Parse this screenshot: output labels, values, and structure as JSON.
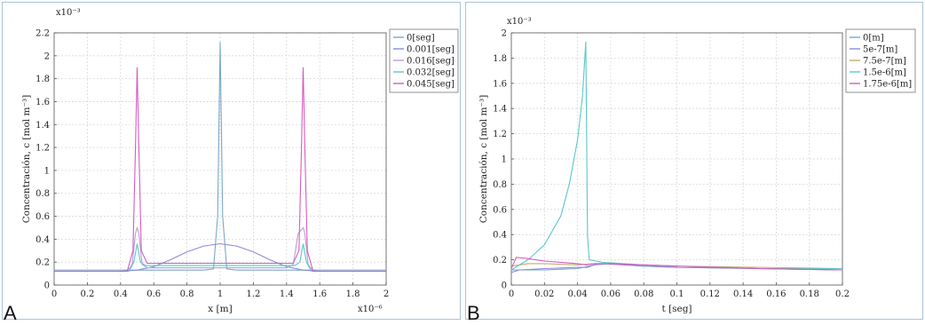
{
  "chart_data": [
    {
      "panel": "A",
      "type": "line",
      "xlabel": "x [m]",
      "ylabel": "Concentración, c [mol m⁻³]",
      "x_multiplier": "x10⁻⁶",
      "y_multiplier": "x10⁻³",
      "xlim": [
        0,
        2
      ],
      "ylim": [
        0,
        2.2
      ],
      "xticks": [
        0,
        0.2,
        0.4,
        0.6,
        0.8,
        1,
        1.2,
        1.4,
        1.6,
        1.8,
        2
      ],
      "xtick_labels": [
        "0",
        "0.2",
        "0.4",
        "0.6",
        "0.8",
        "1",
        "1.2",
        "1.4",
        "1.6",
        "1.8",
        "2"
      ],
      "yticks": [
        0,
        0.2,
        0.4,
        0.6,
        0.8,
        1,
        1.2,
        1.4,
        1.6,
        1.8,
        2,
        2.2
      ],
      "ytick_labels": [
        "0",
        "0.2",
        "0.4",
        "0.6",
        "0.8",
        "1",
        "1.2",
        "1.4",
        "1.6",
        "1.8",
        "2",
        "2.2"
      ],
      "grid": true,
      "legend_position": "top-right",
      "series": [
        {
          "name": "0[seg]",
          "color": "#7aa8c8",
          "points": [
            [
              0,
              0.13
            ],
            [
              0.4,
              0.13
            ],
            [
              0.9,
              0.13
            ],
            [
              0.96,
              0.14
            ],
            [
              0.985,
              0.6
            ],
            [
              1.0,
              2.12
            ],
            [
              1.015,
              0.6
            ],
            [
              1.04,
              0.14
            ],
            [
              1.1,
              0.13
            ],
            [
              1.6,
              0.13
            ],
            [
              2,
              0.13
            ]
          ]
        },
        {
          "name": "0.001[seg]",
          "color": "#8c8cd8",
          "points": [
            [
              0,
              0.12
            ],
            [
              0.4,
              0.12
            ],
            [
              0.5,
              0.13
            ],
            [
              0.6,
              0.16
            ],
            [
              0.7,
              0.22
            ],
            [
              0.8,
              0.29
            ],
            [
              0.9,
              0.34
            ],
            [
              1.0,
              0.36
            ],
            [
              1.1,
              0.34
            ],
            [
              1.2,
              0.29
            ],
            [
              1.3,
              0.22
            ],
            [
              1.4,
              0.16
            ],
            [
              1.5,
              0.13
            ],
            [
              1.6,
              0.12
            ],
            [
              2,
              0.12
            ]
          ]
        },
        {
          "name": "0.016[seg]",
          "color": "#b89fd6",
          "points": [
            [
              0,
              0.12
            ],
            [
              0.44,
              0.12
            ],
            [
              0.47,
              0.18
            ],
            [
              0.49,
              0.45
            ],
            [
              0.5,
              0.5
            ],
            [
              0.51,
              0.45
            ],
            [
              0.53,
              0.18
            ],
            [
              0.56,
              0.15
            ],
            [
              0.9,
              0.15
            ],
            [
              1.0,
              0.15
            ],
            [
              1.4,
              0.15
            ],
            [
              1.44,
              0.18
            ],
            [
              1.47,
              0.45
            ],
            [
              1.5,
              0.5
            ],
            [
              1.51,
              0.45
            ],
            [
              1.53,
              0.18
            ],
            [
              1.56,
              0.12
            ],
            [
              2,
              0.12
            ]
          ]
        },
        {
          "name": "0.032[seg]",
          "color": "#5bc7c7",
          "points": [
            [
              0,
              0.12
            ],
            [
              0.45,
              0.12
            ],
            [
              0.48,
              0.2
            ],
            [
              0.5,
              0.36
            ],
            [
              0.52,
              0.2
            ],
            [
              0.55,
              0.17
            ],
            [
              0.9,
              0.17
            ],
            [
              1.0,
              0.17
            ],
            [
              1.45,
              0.17
            ],
            [
              1.48,
              0.2
            ],
            [
              1.5,
              0.36
            ],
            [
              1.52,
              0.2
            ],
            [
              1.55,
              0.12
            ],
            [
              2,
              0.12
            ]
          ]
        },
        {
          "name": "0.045[seg]",
          "color": "#d65cc0",
          "points": [
            [
              0,
              0.12
            ],
            [
              0.44,
              0.12
            ],
            [
              0.475,
              0.3
            ],
            [
              0.49,
              1.2
            ],
            [
              0.5,
              1.9
            ],
            [
              0.51,
              1.2
            ],
            [
              0.525,
              0.3
            ],
            [
              0.56,
              0.19
            ],
            [
              0.9,
              0.19
            ],
            [
              1.0,
              0.19
            ],
            [
              1.1,
              0.19
            ],
            [
              1.44,
              0.19
            ],
            [
              1.475,
              0.3
            ],
            [
              1.49,
              1.2
            ],
            [
              1.5,
              1.9
            ],
            [
              1.51,
              1.2
            ],
            [
              1.525,
              0.3
            ],
            [
              1.56,
              0.12
            ],
            [
              2,
              0.12
            ]
          ]
        }
      ]
    },
    {
      "panel": "B",
      "type": "line",
      "xlabel": "t [seg]",
      "ylabel": "Concentración, c [mol m⁻³]",
      "y_multiplier": "x10⁻³",
      "xlim": [
        0,
        0.2
      ],
      "ylim": [
        0,
        2
      ],
      "xticks": [
        0,
        0.02,
        0.04,
        0.06,
        0.08,
        0.1,
        0.12,
        0.14,
        0.16,
        0.18,
        0.2
      ],
      "xtick_labels": [
        "0",
        "0.02",
        "0.04",
        "0.06",
        "0.08",
        "0.1",
        "0.12",
        "0.14",
        "0.16",
        "0.18",
        "0.2"
      ],
      "yticks": [
        0,
        0.2,
        0.4,
        0.6,
        0.8,
        1,
        1.2,
        1.4,
        1.6,
        1.8,
        2
      ],
      "ytick_labels": [
        "0",
        "0.2",
        "0.4",
        "0.6",
        "0.8",
        "1",
        "1.2",
        "1.4",
        "1.6",
        "1.8",
        "2"
      ],
      "grid": true,
      "legend_position": "top-right",
      "series": [
        {
          "name": "0[m]",
          "color": "#7aa8c8",
          "points": [
            [
              0,
              0.12
            ],
            [
              0.02,
              0.12
            ],
            [
              0.04,
              0.13
            ],
            [
              0.05,
              0.16
            ],
            [
              0.06,
              0.17
            ],
            [
              0.08,
              0.15
            ],
            [
              0.1,
              0.14
            ],
            [
              0.15,
              0.13
            ],
            [
              0.2,
              0.12
            ]
          ]
        },
        {
          "name": "5e-7[m]",
          "color": "#8c8cd8",
          "points": [
            [
              0,
              0.1
            ],
            [
              0.005,
              0.12
            ],
            [
              0.02,
              0.13
            ],
            [
              0.04,
              0.14
            ],
            [
              0.046,
              0.14
            ],
            [
              0.05,
              0.16
            ],
            [
              0.055,
              0.17
            ],
            [
              0.08,
              0.15
            ],
            [
              0.1,
              0.14
            ],
            [
              0.15,
              0.13
            ],
            [
              0.2,
              0.12
            ]
          ]
        },
        {
          "name": "7.5e-7[m]",
          "color": "#c9a86a",
          "points": [
            [
              0,
              0.15
            ],
            [
              0.01,
              0.17
            ],
            [
              0.02,
              0.17
            ],
            [
              0.04,
              0.16
            ],
            [
              0.05,
              0.17
            ],
            [
              0.06,
              0.17
            ],
            [
              0.1,
              0.15
            ],
            [
              0.2,
              0.13
            ]
          ]
        },
        {
          "name": "1.5e-6[m]",
          "color": "#5bc7c7",
          "points": [
            [
              0,
              0.12
            ],
            [
              0.01,
              0.2
            ],
            [
              0.02,
              0.32
            ],
            [
              0.03,
              0.55
            ],
            [
              0.035,
              0.8
            ],
            [
              0.04,
              1.15
            ],
            [
              0.043,
              1.5
            ],
            [
              0.045,
              1.93
            ],
            [
              0.046,
              0.4
            ],
            [
              0.047,
              0.2
            ],
            [
              0.055,
              0.18
            ],
            [
              0.08,
              0.16
            ],
            [
              0.1,
              0.15
            ],
            [
              0.15,
              0.13
            ],
            [
              0.2,
              0.13
            ]
          ]
        },
        {
          "name": "1.75e-6[m]",
          "color": "#d65cc0",
          "points": [
            [
              0,
              0.13
            ],
            [
              0.003,
              0.22
            ],
            [
              0.01,
              0.21
            ],
            [
              0.02,
              0.19
            ],
            [
              0.03,
              0.18
            ],
            [
              0.04,
              0.17
            ],
            [
              0.045,
              0.16
            ],
            [
              0.05,
              0.17
            ],
            [
              0.06,
              0.17
            ],
            [
              0.1,
              0.15
            ],
            [
              0.15,
              0.13
            ],
            [
              0.2,
              0.12
            ]
          ]
        }
      ]
    }
  ],
  "panels": {
    "a_letter": "A",
    "b_letter": "B"
  }
}
